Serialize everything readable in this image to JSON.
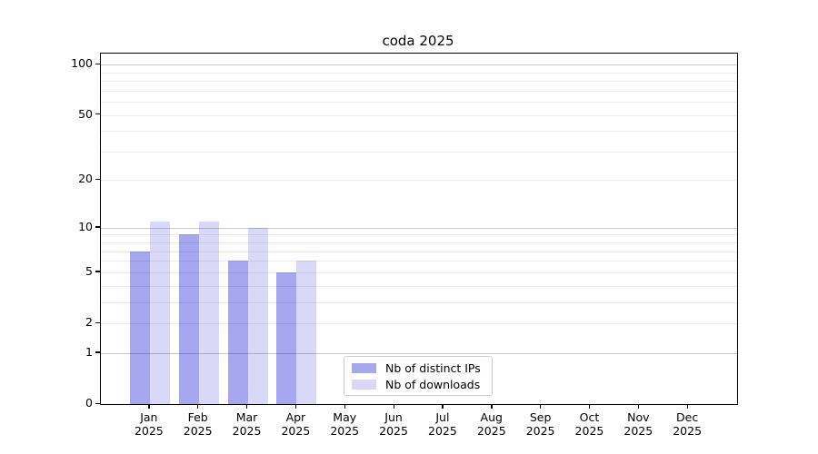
{
  "title": "coda 2025",
  "chart_data": {
    "type": "bar",
    "title": "coda 2025",
    "categories": [
      "Jan",
      "Feb",
      "Mar",
      "Apr",
      "May",
      "Jun",
      "Jul",
      "Aug",
      "Sep",
      "Oct",
      "Nov",
      "Dec"
    ],
    "category_year": "2025",
    "series": [
      {
        "name": "Nb of distinct IPs",
        "key": "distinct-ips",
        "color": "#a7a7f0",
        "values": [
          7,
          9,
          6,
          5,
          0,
          0,
          0,
          0,
          0,
          0,
          0,
          0
        ]
      },
      {
        "name": "Nb of downloads",
        "key": "downloads",
        "color": "#d9d9f7",
        "values": [
          11,
          11,
          10,
          6,
          0,
          0,
          0,
          0,
          0,
          0,
          0,
          0
        ]
      }
    ],
    "xlabel": "",
    "ylabel": "",
    "yscale": "log1p",
    "ylim": [
      0,
      116
    ],
    "yticks": [
      0,
      1,
      2,
      5,
      10,
      20,
      50,
      100
    ],
    "ytick_labels": [
      "0",
      "1",
      "2",
      "5",
      "10",
      "20",
      "50",
      "100"
    ],
    "major_gridline_values": [
      1,
      10,
      100
    ],
    "minor_gridline_values": [
      2,
      3,
      4,
      5,
      6,
      7,
      8,
      9,
      20,
      30,
      40,
      50,
      60,
      70,
      80,
      90
    ],
    "grid": true,
    "legend": {
      "position": "inside-lower-center-left",
      "items": [
        "Nb of distinct IPs",
        "Nb of downloads"
      ]
    }
  }
}
